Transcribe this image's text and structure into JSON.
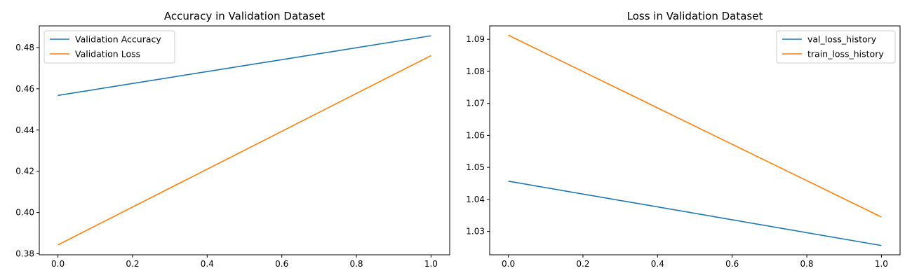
{
  "colors": {
    "blue": "#1f77b4",
    "orange": "#ff7f0e"
  },
  "chart_data": [
    {
      "type": "line",
      "title": "Accuracy in Validation Dataset",
      "xlabel": "",
      "ylabel": "",
      "xlim": [
        -0.05,
        1.05
      ],
      "ylim": [
        0.3795,
        0.4905
      ],
      "xticks": [
        0.0,
        0.2,
        0.4,
        0.6,
        0.8,
        1.0
      ],
      "xtick_labels": [
        "0.0",
        "0.2",
        "0.4",
        "0.6",
        "0.8",
        "1.0"
      ],
      "yticks": [
        0.38,
        0.4,
        0.42,
        0.44,
        0.46,
        0.48
      ],
      "ytick_labels": [
        "0.38",
        "0.40",
        "0.42",
        "0.44",
        "0.46",
        "0.48"
      ],
      "legend_position": "upper-left",
      "grid": false,
      "series": [
        {
          "name": "Validation Accuracy",
          "color": "#1f77b4",
          "x": [
            0,
            1
          ],
          "y": [
            0.4568,
            0.4857
          ]
        },
        {
          "name": "Validation Loss",
          "color": "#ff7f0e",
          "x": [
            0,
            1
          ],
          "y": [
            0.3843,
            0.4761
          ]
        }
      ]
    },
    {
      "type": "line",
      "title": "Loss in Validation Dataset",
      "xlabel": "",
      "ylabel": "",
      "xlim": [
        -0.05,
        1.05
      ],
      "ylim": [
        1.0227,
        1.0942
      ],
      "xticks": [
        0.0,
        0.2,
        0.4,
        0.6,
        0.8,
        1.0
      ],
      "xtick_labels": [
        "0.0",
        "0.2",
        "0.4",
        "0.6",
        "0.8",
        "1.0"
      ],
      "yticks": [
        1.03,
        1.04,
        1.05,
        1.06,
        1.07,
        1.08,
        1.09
      ],
      "ytick_labels": [
        "1.03",
        "1.04",
        "1.05",
        "1.06",
        "1.07",
        "1.08",
        "1.09"
      ],
      "legend_position": "upper-right",
      "grid": false,
      "series": [
        {
          "name": "val_loss_history",
          "color": "#1f77b4",
          "x": [
            0,
            1
          ],
          "y": [
            1.0457,
            1.0256
          ]
        },
        {
          "name": "train_loss_history",
          "color": "#ff7f0e",
          "x": [
            0,
            1
          ],
          "y": [
            1.0913,
            1.0345
          ]
        }
      ]
    }
  ]
}
